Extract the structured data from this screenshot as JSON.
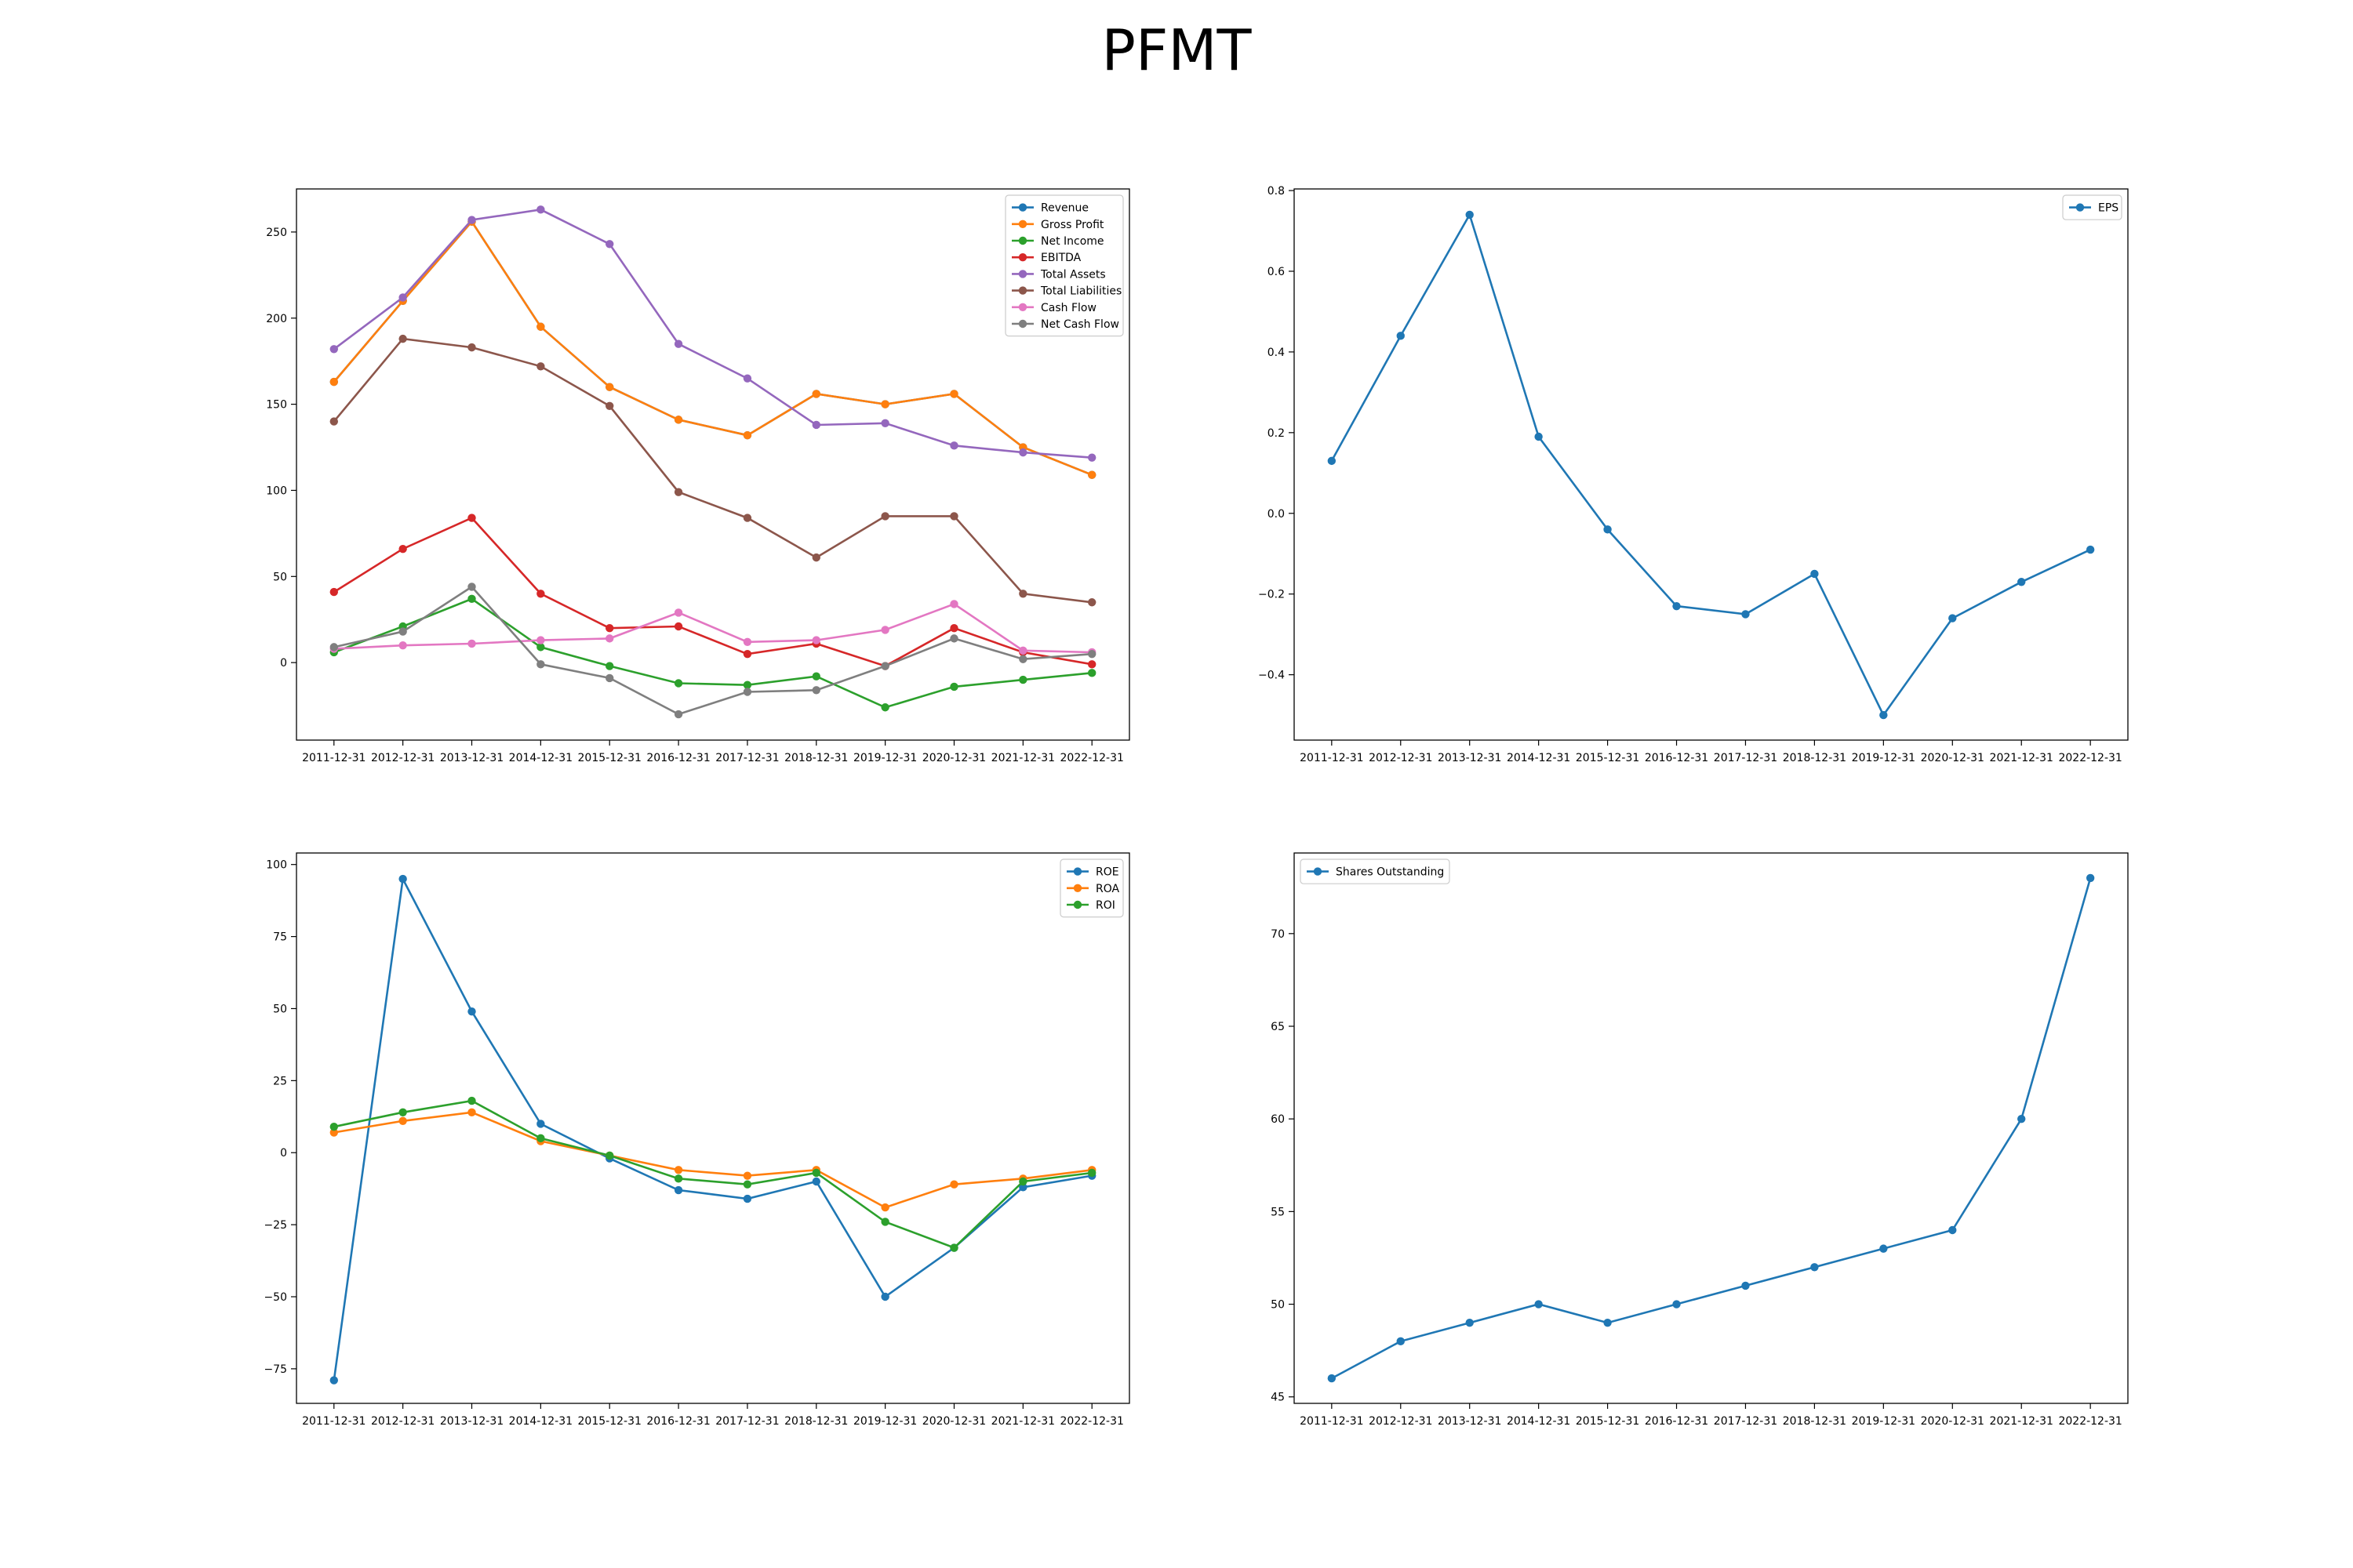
{
  "title": "PFMT",
  "chart_data": [
    {
      "type": "line",
      "categories": [
        "2011-12-31",
        "2012-12-31",
        "2013-12-31",
        "2014-12-31",
        "2015-12-31",
        "2016-12-31",
        "2017-12-31",
        "2018-12-31",
        "2019-12-31",
        "2020-12-31",
        "2021-12-31",
        "2022-12-31"
      ],
      "ylim": [
        -45,
        275
      ],
      "yticks": [
        0,
        50,
        100,
        150,
        200,
        250
      ],
      "grid": false,
      "legend": "top-right",
      "series": [
        {
          "name": "Revenue",
          "color": "#1f77b4",
          "values": [
            163,
            210,
            256,
            195,
            160,
            141,
            132,
            156,
            150,
            156,
            125,
            109
          ]
        },
        {
          "name": "Gross Profit",
          "color": "#ff7f0e",
          "values": [
            163,
            210,
            256,
            195,
            160,
            141,
            132,
            156,
            150,
            156,
            125,
            109
          ]
        },
        {
          "name": "Net Income",
          "color": "#2ca02c",
          "values": [
            6,
            21,
            37,
            9,
            -2,
            -12,
            -13,
            -8,
            -26,
            -14,
            -10,
            -6
          ]
        },
        {
          "name": "EBITDA",
          "color": "#d62728",
          "values": [
            41,
            66,
            84,
            40,
            20,
            21,
            5,
            11,
            -2,
            20,
            6,
            -1
          ]
        },
        {
          "name": "Total Assets",
          "color": "#9467bd",
          "values": [
            182,
            212,
            257,
            263,
            243,
            185,
            165,
            138,
            139,
            126,
            122,
            119
          ]
        },
        {
          "name": "Total Liabilities",
          "color": "#8c564b",
          "values": [
            140,
            188,
            183,
            172,
            149,
            99,
            84,
            61,
            85,
            85,
            40,
            35
          ]
        },
        {
          "name": "Cash Flow",
          "color": "#e377c2",
          "values": [
            8,
            10,
            11,
            13,
            14,
            29,
            12,
            13,
            19,
            34,
            7,
            6
          ]
        },
        {
          "name": "Net Cash Flow",
          "color": "#7f7f7f",
          "values": [
            9,
            18,
            44,
            -1,
            -9,
            -30,
            -17,
            -16,
            -2,
            14,
            2,
            5
          ]
        }
      ]
    },
    {
      "type": "line",
      "categories": [
        "2011-12-31",
        "2012-12-31",
        "2013-12-31",
        "2014-12-31",
        "2015-12-31",
        "2016-12-31",
        "2017-12-31",
        "2018-12-31",
        "2019-12-31",
        "2020-12-31",
        "2021-12-31",
        "2022-12-31"
      ],
      "ylim": [
        -0.562,
        0.804
      ],
      "yticks": [
        -0.4,
        -0.2,
        0.0,
        0.2,
        0.4,
        0.6,
        0.8
      ],
      "yticklabels": [
        "−0.4",
        "−0.2",
        "0.0",
        "0.2",
        "0.4",
        "0.6",
        "0.8"
      ],
      "grid": false,
      "legend": "top-right",
      "series": [
        {
          "name": "EPS",
          "color": "#1f77b4",
          "values": [
            0.13,
            0.44,
            0.74,
            0.19,
            -0.04,
            -0.23,
            -0.25,
            -0.15,
            -0.5,
            -0.26,
            -0.17,
            -0.09
          ]
        }
      ]
    },
    {
      "type": "line",
      "categories": [
        "2011-12-31",
        "2012-12-31",
        "2013-12-31",
        "2014-12-31",
        "2015-12-31",
        "2016-12-31",
        "2017-12-31",
        "2018-12-31",
        "2019-12-31",
        "2020-12-31",
        "2021-12-31",
        "2022-12-31"
      ],
      "ylim": [
        -87,
        104
      ],
      "yticks": [
        -75,
        -50,
        -25,
        0,
        25,
        50,
        75,
        100
      ],
      "yticklabels": [
        "−75",
        "−50",
        "−25",
        "0",
        "25",
        "50",
        "75",
        "100"
      ],
      "grid": false,
      "legend": "top-right",
      "series": [
        {
          "name": "ROE",
          "color": "#1f77b4",
          "values": [
            -79,
            95,
            49,
            10,
            -2,
            -13,
            -16,
            -10,
            -50,
            -33,
            -12,
            -8
          ]
        },
        {
          "name": "ROA",
          "color": "#ff7f0e",
          "values": [
            7,
            11,
            14,
            4,
            -1,
            -6,
            -8,
            -6,
            -19,
            -11,
            -9,
            -6
          ]
        },
        {
          "name": "ROI",
          "color": "#2ca02c",
          "values": [
            9,
            14,
            18,
            5,
            -1,
            -9,
            -11,
            -7,
            -24,
            -33,
            -10,
            -7
          ]
        }
      ]
    },
    {
      "type": "line",
      "categories": [
        "2011-12-31",
        "2012-12-31",
        "2013-12-31",
        "2014-12-31",
        "2015-12-31",
        "2016-12-31",
        "2017-12-31",
        "2018-12-31",
        "2019-12-31",
        "2020-12-31",
        "2021-12-31",
        "2022-12-31"
      ],
      "ylim": [
        44.65,
        74.35
      ],
      "yticks": [
        45,
        50,
        55,
        60,
        65,
        70
      ],
      "grid": false,
      "legend": "top-left",
      "series": [
        {
          "name": "Shares Outstanding",
          "color": "#1f77b4",
          "values": [
            46,
            48,
            49,
            50,
            49,
            50,
            51,
            52,
            53,
            54,
            60,
            73
          ]
        }
      ]
    }
  ]
}
